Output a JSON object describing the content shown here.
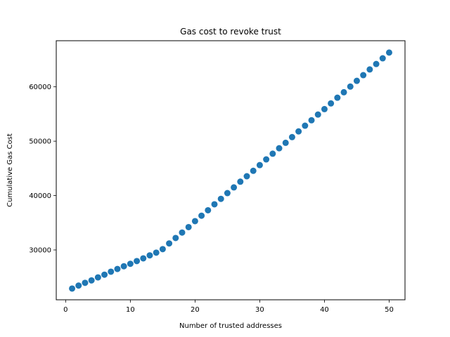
{
  "chart_data": {
    "type": "scatter",
    "title": "Gas cost to revoke trust",
    "xlabel": "Number of trusted addresses",
    "ylabel": "Cumulative Gas Cost",
    "xlim": [
      -1.45,
      52.45
    ],
    "ylim": [
      20830,
      68480
    ],
    "xticks": [
      0,
      10,
      20,
      30,
      40,
      50
    ],
    "yticks": [
      30000,
      40000,
      50000,
      60000
    ],
    "grid": false,
    "marker_color": "#1f77b4",
    "x": [
      1,
      2,
      3,
      4,
      5,
      6,
      7,
      8,
      9,
      10,
      11,
      12,
      13,
      14,
      15,
      16,
      17,
      18,
      19,
      20,
      21,
      22,
      23,
      24,
      25,
      26,
      27,
      28,
      29,
      30,
      31,
      32,
      33,
      34,
      35,
      36,
      37,
      38,
      39,
      40,
      41,
      42,
      43,
      44,
      45,
      46,
      47,
      48,
      49,
      50
    ],
    "y": [
      22900,
      23450,
      23950,
      24400,
      24950,
      25450,
      26000,
      26500,
      27000,
      27450,
      27950,
      28450,
      29000,
      29500,
      30150,
      31200,
      32200,
      33200,
      34200,
      35300,
      36300,
      37300,
      38400,
      39400,
      40450,
      41500,
      42550,
      43550,
      44550,
      45600,
      46650,
      47700,
      48700,
      49700,
      50750,
      51800,
      52850,
      53850,
      54900,
      55900,
      56950,
      58000,
      59000,
      60050,
      61100,
      62150,
      63200,
      64200,
      65250,
      66300
    ]
  }
}
